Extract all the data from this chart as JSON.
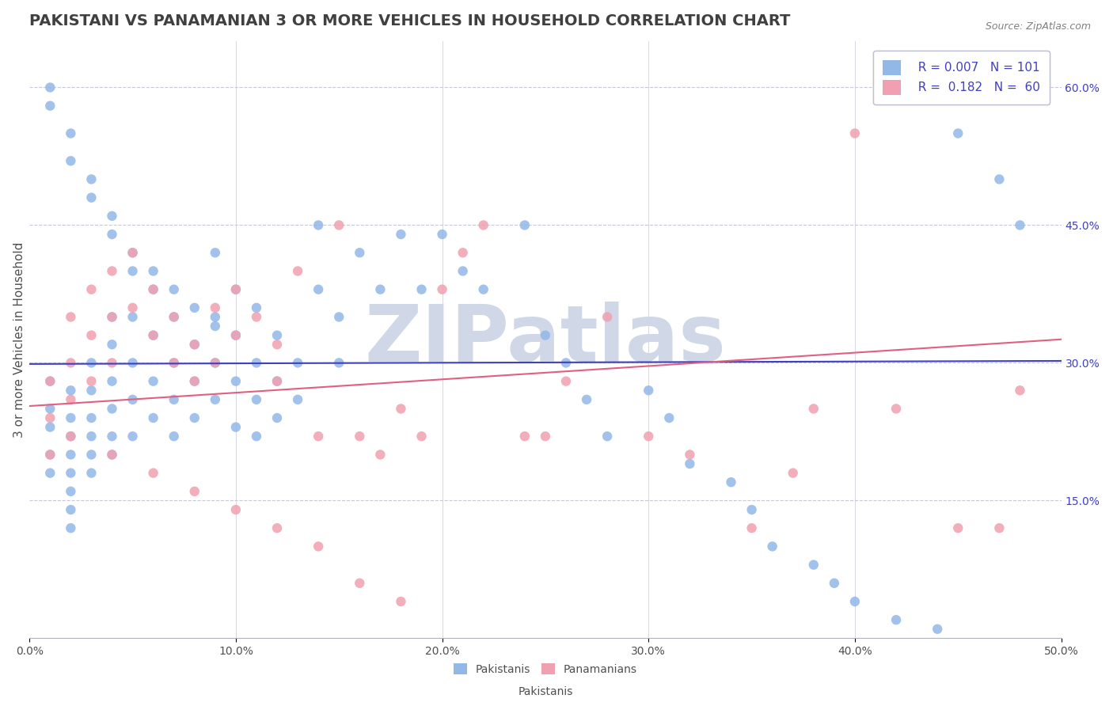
{
  "title": "PAKISTANI VS PANAMANIAN 3 OR MORE VEHICLES IN HOUSEHOLD CORRELATION CHART",
  "source_text": "Source: ZipAtlas.com",
  "xlabel": "",
  "ylabel": "3 or more Vehicles in Household",
  "xlim": [
    0.0,
    0.5
  ],
  "ylim": [
    0.0,
    0.65
  ],
  "xticks": [
    0.0,
    0.1,
    0.2,
    0.3,
    0.4,
    0.5
  ],
  "yticks_right": [
    0.15,
    0.3,
    0.45,
    0.6
  ],
  "ytick_labels_right": [
    "15.0%",
    "30.0%",
    "45.0%",
    "60.0%"
  ],
  "xtick_labels": [
    "0.0%",
    "10.0%",
    "20.0%",
    "30.0%",
    "40.0%",
    "50.0%"
  ],
  "legend_r1": "R = 0.007",
  "legend_n1": "N = 101",
  "legend_r2": "R =  0.182",
  "legend_n2": "N =  60",
  "blue_color": "#92b8e8",
  "pink_color": "#f0a0b0",
  "blue_line_color": "#4040c0",
  "pink_line_color": "#e06080",
  "watermark": "ZIPatlas",
  "watermark_color": "#d0d8e8",
  "background_color": "#ffffff",
  "grid_color": "#c8c8d8",
  "title_color": "#404040",
  "R_color": "#4040c0",
  "blue_scatter_x": [
    0.01,
    0.01,
    0.01,
    0.01,
    0.01,
    0.02,
    0.02,
    0.02,
    0.02,
    0.02,
    0.02,
    0.02,
    0.02,
    0.03,
    0.03,
    0.03,
    0.03,
    0.03,
    0.03,
    0.04,
    0.04,
    0.04,
    0.04,
    0.04,
    0.04,
    0.05,
    0.05,
    0.05,
    0.05,
    0.05,
    0.06,
    0.06,
    0.06,
    0.06,
    0.07,
    0.07,
    0.07,
    0.07,
    0.08,
    0.08,
    0.08,
    0.09,
    0.09,
    0.09,
    0.09,
    0.1,
    0.1,
    0.1,
    0.1,
    0.11,
    0.11,
    0.11,
    0.11,
    0.12,
    0.12,
    0.12,
    0.13,
    0.13,
    0.14,
    0.14,
    0.15,
    0.15,
    0.16,
    0.17,
    0.18,
    0.19,
    0.2,
    0.21,
    0.22,
    0.24,
    0.25,
    0.26,
    0.27,
    0.28,
    0.3,
    0.31,
    0.32,
    0.34,
    0.35,
    0.36,
    0.38,
    0.39,
    0.4,
    0.42,
    0.44,
    0.45,
    0.47,
    0.48,
    0.01,
    0.01,
    0.02,
    0.02,
    0.03,
    0.03,
    0.04,
    0.04,
    0.05,
    0.06,
    0.07,
    0.08,
    0.09
  ],
  "blue_scatter_y": [
    0.25,
    0.28,
    0.23,
    0.2,
    0.18,
    0.27,
    0.24,
    0.22,
    0.2,
    0.18,
    0.16,
    0.14,
    0.12,
    0.3,
    0.27,
    0.24,
    0.22,
    0.2,
    0.18,
    0.35,
    0.32,
    0.28,
    0.25,
    0.22,
    0.2,
    0.4,
    0.35,
    0.3,
    0.26,
    0.22,
    0.38,
    0.33,
    0.28,
    0.24,
    0.35,
    0.3,
    0.26,
    0.22,
    0.32,
    0.28,
    0.24,
    0.42,
    0.35,
    0.3,
    0.26,
    0.38,
    0.33,
    0.28,
    0.23,
    0.36,
    0.3,
    0.26,
    0.22,
    0.33,
    0.28,
    0.24,
    0.3,
    0.26,
    0.45,
    0.38,
    0.35,
    0.3,
    0.42,
    0.38,
    0.44,
    0.38,
    0.44,
    0.4,
    0.38,
    0.45,
    0.33,
    0.3,
    0.26,
    0.22,
    0.27,
    0.24,
    0.19,
    0.17,
    0.14,
    0.1,
    0.08,
    0.06,
    0.04,
    0.02,
    0.01,
    0.55,
    0.5,
    0.45,
    0.6,
    0.58,
    0.55,
    0.52,
    0.5,
    0.48,
    0.46,
    0.44,
    0.42,
    0.4,
    0.38,
    0.36,
    0.34
  ],
  "pink_scatter_x": [
    0.01,
    0.01,
    0.01,
    0.02,
    0.02,
    0.02,
    0.03,
    0.03,
    0.03,
    0.04,
    0.04,
    0.04,
    0.05,
    0.05,
    0.06,
    0.06,
    0.07,
    0.07,
    0.08,
    0.08,
    0.09,
    0.09,
    0.1,
    0.1,
    0.11,
    0.12,
    0.12,
    0.13,
    0.14,
    0.15,
    0.16,
    0.17,
    0.18,
    0.19,
    0.2,
    0.21,
    0.22,
    0.24,
    0.25,
    0.26,
    0.28,
    0.3,
    0.32,
    0.35,
    0.37,
    0.4,
    0.42,
    0.45,
    0.47,
    0.48,
    0.02,
    0.04,
    0.06,
    0.08,
    0.1,
    0.12,
    0.14,
    0.16,
    0.18,
    0.38
  ],
  "pink_scatter_y": [
    0.28,
    0.24,
    0.2,
    0.35,
    0.3,
    0.26,
    0.38,
    0.33,
    0.28,
    0.4,
    0.35,
    0.3,
    0.42,
    0.36,
    0.38,
    0.33,
    0.35,
    0.3,
    0.32,
    0.28,
    0.36,
    0.3,
    0.38,
    0.33,
    0.35,
    0.32,
    0.28,
    0.4,
    0.22,
    0.45,
    0.22,
    0.2,
    0.25,
    0.22,
    0.38,
    0.42,
    0.45,
    0.22,
    0.22,
    0.28,
    0.35,
    0.22,
    0.2,
    0.12,
    0.18,
    0.55,
    0.25,
    0.12,
    0.12,
    0.27,
    0.22,
    0.2,
    0.18,
    0.16,
    0.14,
    0.12,
    0.1,
    0.06,
    0.04,
    0.25
  ]
}
